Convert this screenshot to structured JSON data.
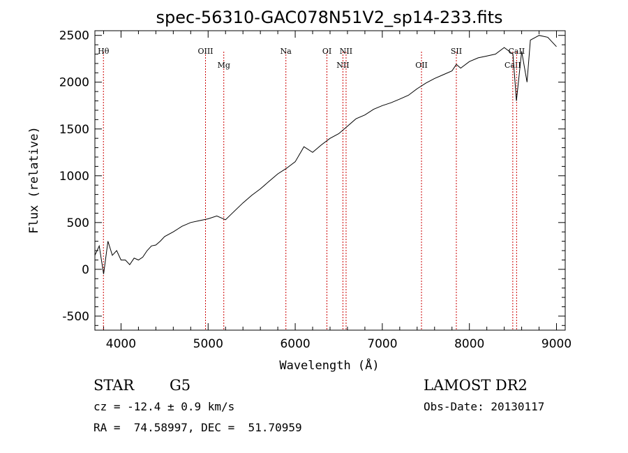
{
  "chart_data": {
    "type": "line",
    "title": "spec-56310-GAC078N51V2_sp14-233.fits",
    "xlabel": "Wavelength (Å)",
    "ylabel": "Flux (relative)",
    "xlim": [
      3700,
      9100
    ],
    "ylim": [
      -650,
      2550
    ],
    "xticks": [
      "4000",
      "5000",
      "6000",
      "7000",
      "8000",
      "9000"
    ],
    "yticks": [
      "-500",
      "0",
      "500",
      "1000",
      "1500",
      "2000",
      "2500"
    ],
    "grid": false,
    "series": [
      {
        "x": [
          3700,
          3750,
          3800,
          3850,
          3900,
          3950,
          4000,
          4050,
          4100,
          4150,
          4200,
          4250,
          4300,
          4350,
          4400,
          4450,
          4500,
          4600,
          4700,
          4800,
          4900,
          5000,
          5100,
          5200,
          5300,
          5400,
          5500,
          5600,
          5700,
          5800,
          5900,
          6000,
          6100,
          6200,
          6300,
          6400,
          6500,
          6600,
          6700,
          6800,
          6900,
          7000,
          7100,
          7200,
          7300,
          7400,
          7500,
          7600,
          7700,
          7800,
          7850,
          7900,
          8000,
          8100,
          8200,
          8300,
          8400,
          8500,
          8540,
          8600,
          8662,
          8700,
          8800,
          8900,
          9000
        ],
        "y": [
          150,
          250,
          -50,
          300,
          150,
          200,
          100,
          100,
          50,
          120,
          100,
          130,
          200,
          250,
          260,
          300,
          350,
          400,
          460,
          500,
          520,
          540,
          570,
          530,
          620,
          710,
          790,
          860,
          940,
          1020,
          1080,
          1150,
          1310,
          1250,
          1330,
          1400,
          1450,
          1530,
          1610,
          1650,
          1710,
          1750,
          1780,
          1820,
          1860,
          1930,
          1990,
          2040,
          2080,
          2120,
          2190,
          2150,
          2220,
          2260,
          2280,
          2300,
          2370,
          2300,
          1800,
          2330,
          2000,
          2450,
          2500,
          2480,
          2380
        ]
      }
    ],
    "lines": [
      {
        "label": "Hθ",
        "x": 3798,
        "label_row": "upper"
      },
      {
        "label": "OIII",
        "x": 4970,
        "label_row": "upper"
      },
      {
        "label": "Mg",
        "x": 5180,
        "label_row": "lower"
      },
      {
        "label": "Na",
        "x": 5893,
        "label_row": "upper"
      },
      {
        "label": "OI",
        "x": 6364,
        "label_row": "upper"
      },
      {
        "label": "NII",
        "x": 6548,
        "label_row": "lower"
      },
      {
        "label": "NII",
        "x": 6584,
        "label_row": "upper"
      },
      {
        "label": "OII",
        "x": 7450,
        "label_row": "lower"
      },
      {
        "label": "SII",
        "x": 7850,
        "label_row": "upper"
      },
      {
        "label": "CaII",
        "x": 8498,
        "label_row": "lower"
      },
      {
        "label": "CaII",
        "x": 8542,
        "label_row": "upper"
      }
    ]
  },
  "info": {
    "object_class": "STAR",
    "subclass": "G5",
    "survey": "LAMOST DR2",
    "cz": "cz = -12.4 ± 0.9 km/s",
    "obs_date": "Obs-Date: 20130117",
    "coords": "RA =  74.58997, DEC =  51.70959"
  }
}
